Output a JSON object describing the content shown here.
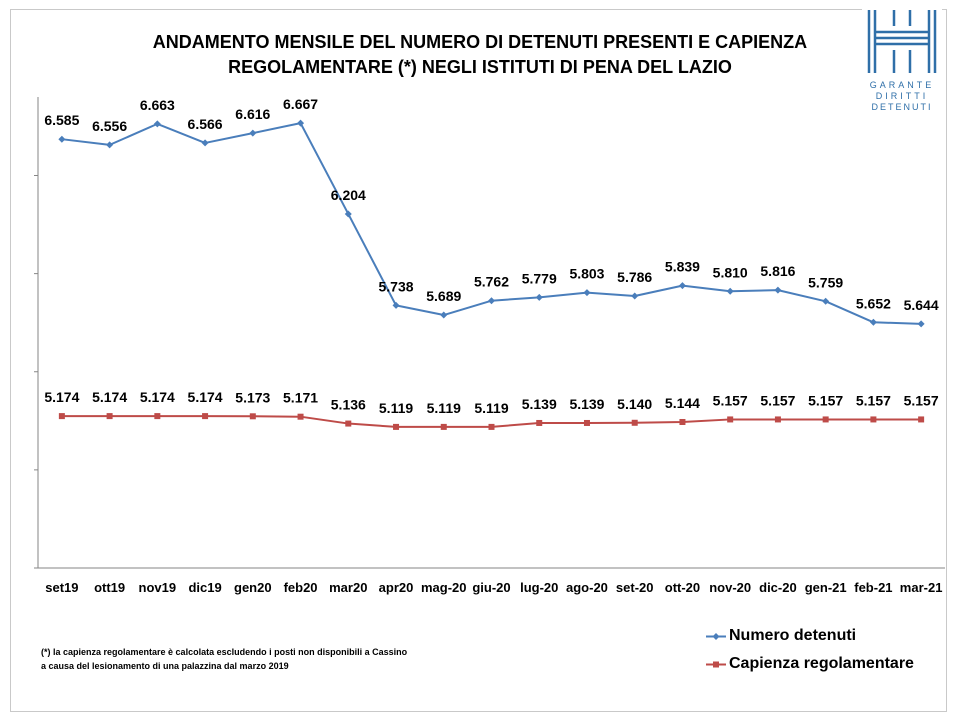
{
  "header": {
    "title_line1": "ANDAMENTO MENSILE  DEL NUMERO DI DETENUTI PRESENTI E CAPIENZA",
    "title_line2": "REGOLAMENTARE (*) NEGLI ISTITUTI DI PENA DEL LAZIO"
  },
  "logo": {
    "line1": "GARANTE",
    "line2": "DIRITTI",
    "line3": "DETENUTI",
    "color": "#2f6fa8"
  },
  "footnote": {
    "line1": "(*) la capienza regolamentare è calcolata escludendo i posti non disponibili a Cassino",
    "line2": "a causa del lesionamento di una palazzina dal marzo 2019"
  },
  "chart_data": {
    "type": "line",
    "categories": [
      "set19",
      "ott19",
      "nov19",
      "dic19",
      "gen20",
      "feb20",
      "mar20",
      "apr20",
      "mag-20",
      "giu-20",
      "lug-20",
      "ago-20",
      "set-20",
      "ott-20",
      "nov-20",
      "dic-20",
      "gen-21",
      "feb-21",
      "mar-21"
    ],
    "series": [
      {
        "name": "Numero detenuti",
        "color": "#4a7ebb",
        "marker": "diamond",
        "values": [
          6585,
          6556,
          6663,
          6566,
          6616,
          6667,
          6204,
          5738,
          5689,
          5762,
          5779,
          5803,
          5786,
          5839,
          5810,
          5816,
          5759,
          5652,
          5644
        ],
        "labels": [
          "6.585",
          "6.556",
          "6.663",
          "6.566",
          "6.616",
          "6.667",
          "6.204",
          "5.738",
          "5.689",
          "5.762",
          "5.779",
          "5.803",
          "5.786",
          "5.839",
          "5.810",
          "5.816",
          "5.759",
          "5.652",
          "5.644"
        ]
      },
      {
        "name": "Capienza regolamentare",
        "color": "#be4b48",
        "marker": "square",
        "values": [
          5174,
          5174,
          5174,
          5174,
          5173,
          5171,
          5136,
          5119,
          5119,
          5119,
          5139,
          5139,
          5140,
          5144,
          5157,
          5157,
          5157,
          5157,
          5157
        ],
        "labels": [
          "5.174",
          "5.174",
          "5.174",
          "5.174",
          "5.173",
          "5.171",
          "5.136",
          "5.119",
          "5.119",
          "5.119",
          "5.139",
          "5.139",
          "5.140",
          "5.144",
          "5.157",
          "5.157",
          "5.157",
          "5.157",
          "5.157"
        ]
      }
    ],
    "ylim": [
      4400,
      6800
    ],
    "grid": false,
    "legend_position": "bottom-right"
  }
}
